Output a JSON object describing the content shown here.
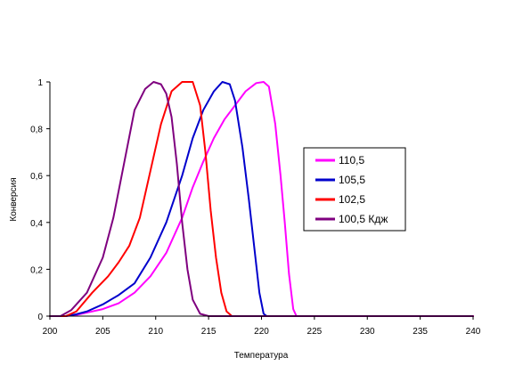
{
  "chart_data": {
    "type": "line",
    "title": "",
    "xlabel": "Температура",
    "ylabel": "Конверсия",
    "xlim": [
      200,
      240
    ],
    "ylim": [
      0,
      1
    ],
    "x_ticks": [
      200,
      205,
      210,
      215,
      220,
      225,
      230,
      235,
      240
    ],
    "x_tick_labels": [
      "200",
      "205",
      "210",
      "215",
      "220",
      "225",
      "230",
      "235",
      "240"
    ],
    "y_ticks": [
      0,
      0.2,
      0.4,
      0.6,
      0.8,
      1
    ],
    "y_tick_labels": [
      "0",
      "0,2",
      "0,4",
      "0,6",
      "0,8",
      "1"
    ],
    "grid": false,
    "legend_position": "right",
    "series": [
      {
        "name": "110,5",
        "color": "#ff00ff",
        "points": [
          [
            200,
            0
          ],
          [
            201.5,
            0
          ],
          [
            202.5,
            0.005
          ],
          [
            203.5,
            0.015
          ],
          [
            205,
            0.03
          ],
          [
            206.5,
            0.055
          ],
          [
            208,
            0.1
          ],
          [
            209.5,
            0.17
          ],
          [
            211,
            0.27
          ],
          [
            212.5,
            0.42
          ],
          [
            213.5,
            0.55
          ],
          [
            214.5,
            0.66
          ],
          [
            215.5,
            0.76
          ],
          [
            216.5,
            0.84
          ],
          [
            217.5,
            0.9
          ],
          [
            218.5,
            0.96
          ],
          [
            219.5,
            0.995
          ],
          [
            220.2,
            1
          ],
          [
            220.7,
            0.98
          ],
          [
            221.3,
            0.82
          ],
          [
            221.8,
            0.6
          ],
          [
            222.2,
            0.4
          ],
          [
            222.6,
            0.18
          ],
          [
            223,
            0.03
          ],
          [
            223.3,
            0
          ],
          [
            240,
            0
          ]
        ]
      },
      {
        "name": "105,5",
        "color": "#0000cc",
        "points": [
          [
            200,
            0
          ],
          [
            201.5,
            0
          ],
          [
            202.5,
            0.008
          ],
          [
            203.5,
            0.02
          ],
          [
            205,
            0.05
          ],
          [
            206.5,
            0.09
          ],
          [
            208,
            0.14
          ],
          [
            209.5,
            0.25
          ],
          [
            211,
            0.4
          ],
          [
            212.5,
            0.6
          ],
          [
            213.5,
            0.76
          ],
          [
            214.5,
            0.88
          ],
          [
            215.5,
            0.96
          ],
          [
            216.3,
            1
          ],
          [
            217,
            0.99
          ],
          [
            217.5,
            0.92
          ],
          [
            218.2,
            0.72
          ],
          [
            218.8,
            0.5
          ],
          [
            219.3,
            0.3
          ],
          [
            219.8,
            0.1
          ],
          [
            220.2,
            0.01
          ],
          [
            220.5,
            0
          ],
          [
            240,
            0
          ]
        ]
      },
      {
        "name": "102,5",
        "color": "#ff0000",
        "points": [
          [
            200,
            0
          ],
          [
            201.5,
            0
          ],
          [
            202.5,
            0.02
          ],
          [
            204,
            0.1
          ],
          [
            205.5,
            0.17
          ],
          [
            206.5,
            0.23
          ],
          [
            207.5,
            0.3
          ],
          [
            208.5,
            0.42
          ],
          [
            209.5,
            0.62
          ],
          [
            210.5,
            0.82
          ],
          [
            211.5,
            0.96
          ],
          [
            212.5,
            1
          ],
          [
            213.5,
            1
          ],
          [
            214.2,
            0.9
          ],
          [
            214.7,
            0.7
          ],
          [
            215.2,
            0.45
          ],
          [
            215.7,
            0.25
          ],
          [
            216.2,
            0.1
          ],
          [
            216.7,
            0.02
          ],
          [
            217.2,
            0
          ],
          [
            240,
            0
          ]
        ]
      },
      {
        "name": "100,5 Кдж",
        "color": "#7f007f",
        "points": [
          [
            200,
            0
          ],
          [
            201,
            0
          ],
          [
            202,
            0.025
          ],
          [
            203.5,
            0.1
          ],
          [
            205,
            0.25
          ],
          [
            206,
            0.42
          ],
          [
            207,
            0.65
          ],
          [
            208,
            0.88
          ],
          [
            209,
            0.97
          ],
          [
            209.8,
            1
          ],
          [
            210.5,
            0.99
          ],
          [
            211,
            0.95
          ],
          [
            211.5,
            0.85
          ],
          [
            212,
            0.65
          ],
          [
            212.5,
            0.4
          ],
          [
            213,
            0.2
          ],
          [
            213.5,
            0.07
          ],
          [
            214.2,
            0.01
          ],
          [
            215,
            0
          ],
          [
            240,
            0
          ]
        ]
      }
    ]
  }
}
